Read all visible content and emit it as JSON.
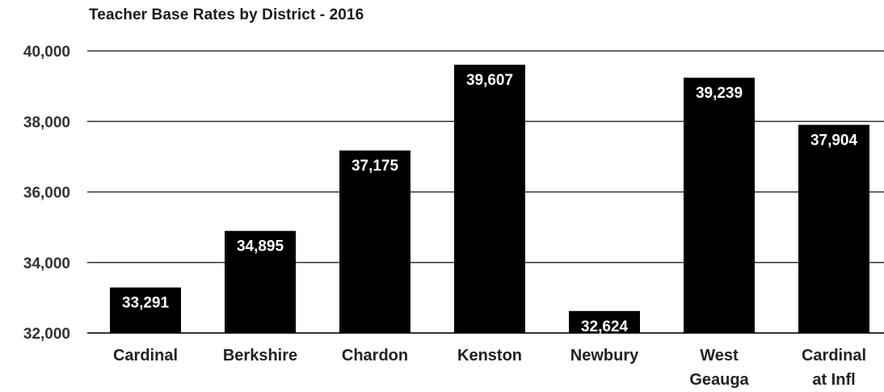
{
  "chart_data": {
    "type": "bar",
    "title": "Teacher Base Rates by District - 2016",
    "categories": [
      [
        "Cardinal"
      ],
      [
        "Berkshire"
      ],
      [
        "Chardon"
      ],
      [
        "Kenston"
      ],
      [
        "Newbury"
      ],
      [
        "West",
        "Geauga"
      ],
      [
        "Cardinal",
        "at Infl"
      ]
    ],
    "values": [
      33291,
      34895,
      37175,
      39607,
      32624,
      39239,
      37904
    ],
    "value_labels": [
      "33,291",
      "34,895",
      "37,175",
      "39,607",
      "32,624",
      "39,239",
      "37,904"
    ],
    "ylim": [
      32000,
      40000
    ],
    "yticks": [
      32000,
      34000,
      36000,
      38000,
      40000
    ],
    "ytick_labels": [
      "32,000",
      "34,000",
      "36,000",
      "38,000",
      "40,000"
    ],
    "grid": true,
    "bar_color": "#000000",
    "label_color": "#ffffff",
    "grid_color": "#333333"
  }
}
